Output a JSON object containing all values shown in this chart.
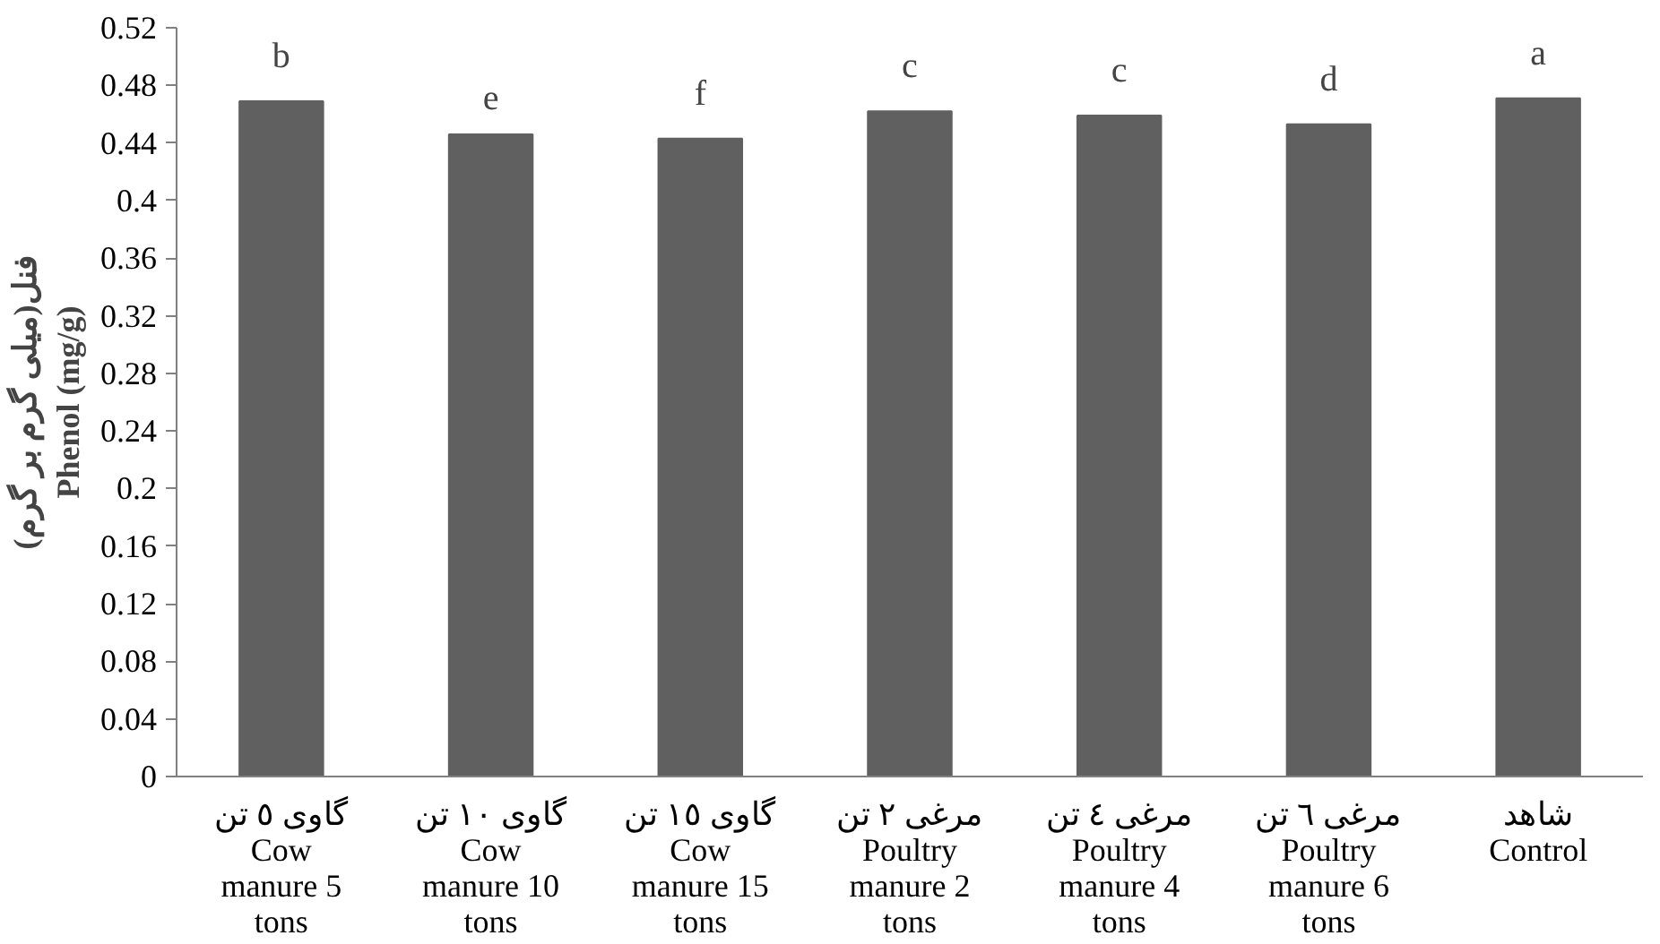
{
  "chart_data": {
    "type": "bar",
    "ylabel": "فنل(میلی گرم بر گرم)\nPhenol (mg/g)",
    "categories": [
      "گاوی ٥ تن\nCow\nmanure 5\ntons",
      "گاوی ١٠ تن\nCow\nmanure 10\ntons",
      "گاوی ١٥ تن\nCow\nmanure 15\ntons",
      "مرغی ٢ تن\nPoultry\nmanure 2\ntons",
      "مرغی ٤ تن\nPoultry\nmanure 4\ntons",
      "مرغی ٦ تن\nPoultry\nmanure 6\ntons",
      "شاهد\nControl"
    ],
    "values": [
      0.469,
      0.446,
      0.443,
      0.462,
      0.459,
      0.453,
      0.471
    ],
    "color": "#606060",
    "ylim": [
      0,
      0.52
    ],
    "yticks": [
      0,
      0.04,
      0.08,
      0.12,
      0.16,
      0.2,
      0.24,
      0.28,
      0.32,
      0.36,
      0.4,
      0.44,
      0.48,
      0.52
    ],
    "grid": false,
    "annotations": [
      {
        "text": "b",
        "x": "گاوی ٥ تن\nCow\nmanure 5\ntons",
        "y": 0.469
      },
      {
        "text": "e",
        "x": "گاوی ١٠ تن\nCow\nmanure 10\ntons",
        "y": 0.446
      },
      {
        "text": "f",
        "x": "گاوی ١٥ تن\nCow\nmanure 15\ntons",
        "y": 0.443
      },
      {
        "text": "c",
        "x": "مرغی ٢ تن\nPoultry\nmanure 2\ntons",
        "y": 0.462
      },
      {
        "text": "c",
        "x": "مرغی ٤ تن\nPoultry\nmanure 4\ntons",
        "y": 0.459
      },
      {
        "text": "d",
        "x": "مرغی ٦ تن\nPoultry\nmanure 6\ntons",
        "y": 0.453
      },
      {
        "text": "a",
        "x": "شاهد\nControl",
        "y": 0.471
      }
    ]
  }
}
